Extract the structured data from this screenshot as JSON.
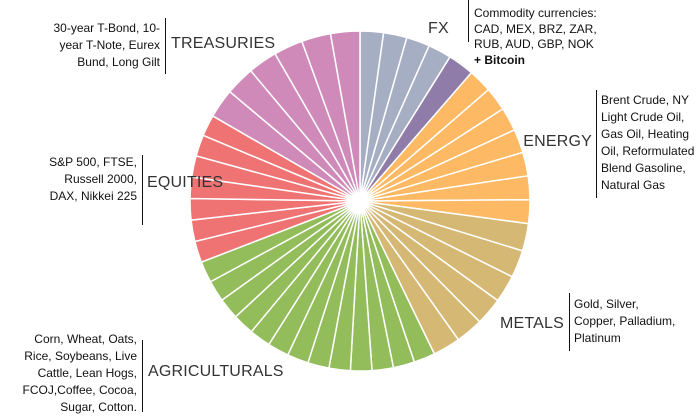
{
  "chart_data": {
    "type": "pie",
    "title": "",
    "start": "top, clockwise",
    "groups": [
      {
        "name": "FX",
        "color": "#a6aec3",
        "slices": [
          8,
          8,
          8,
          8
        ]
      },
      {
        "name": "Bitcoin",
        "color": "#8f7ca9",
        "slices": [
          9
        ]
      },
      {
        "name": "ENERGY",
        "color": "#fdb964",
        "slices": [
          8.1,
          8.1,
          8.1,
          8.1,
          8.1,
          8.1,
          8.1
        ]
      },
      {
        "name": "METALS",
        "color": "#d5b873",
        "slices": [
          9.4,
          9.4,
          9.4,
          9.4,
          9.4,
          9.4
        ]
      },
      {
        "name": "AGRICULTURALS",
        "color": "#93bc5a",
        "slices": [
          7.3,
          7.3,
          7.3,
          7.3,
          7.3,
          7.3,
          7.3,
          7.3,
          7.3,
          7.3,
          7.3,
          7.3,
          7.3
        ]
      },
      {
        "name": "EQUITIES",
        "color": "#ef7373",
        "slices": [
          7.3,
          7.3,
          7.3,
          7.3,
          7.3,
          7.3,
          7.3
        ]
      },
      {
        "name": "TREASURIES",
        "color": "#d08ab9",
        "slices": [
          10,
          10,
          10,
          10,
          10,
          10
        ]
      }
    ]
  },
  "labels": {
    "treasuries": {
      "title": "TREASURIES",
      "desc": [
        "30-year T-Bond, 10-",
        "year T-Note, Eurex",
        "Bund, Long Gilt"
      ]
    },
    "fx": {
      "title": "FX",
      "desc": [
        "Commodity currencies:",
        "CAD, MEX, BRZ, ZAR,",
        "RUB, AUD, GBP, NOK"
      ],
      "extra": "+ Bitcoin"
    },
    "energy": {
      "title": "ENERGY",
      "desc": [
        "Brent Crude, NY",
        "Light Crude Oil,",
        "Gas Oil, Heating",
        "Oil, Reformulated",
        "Blend Gasoline,",
        "Natural Gas"
      ]
    },
    "metals": {
      "title": "METALS",
      "desc": [
        "Gold, Silver,",
        "Copper, Palladium,",
        "Platinum"
      ]
    },
    "equities": {
      "title": "EQUITIES",
      "desc": [
        "S&P 500, FTSE,",
        "Russell 2000,",
        "DAX, Nikkei 225"
      ]
    },
    "agriculturals": {
      "title": "AGRICULTURALS",
      "desc": [
        "Corn, Wheat, Oats,",
        "Rice, Soybeans, Live",
        "Cattle, Lean Hogs,",
        "FCOJ,Coffee, Cocoa,",
        "Sugar, Cotton."
      ]
    }
  }
}
